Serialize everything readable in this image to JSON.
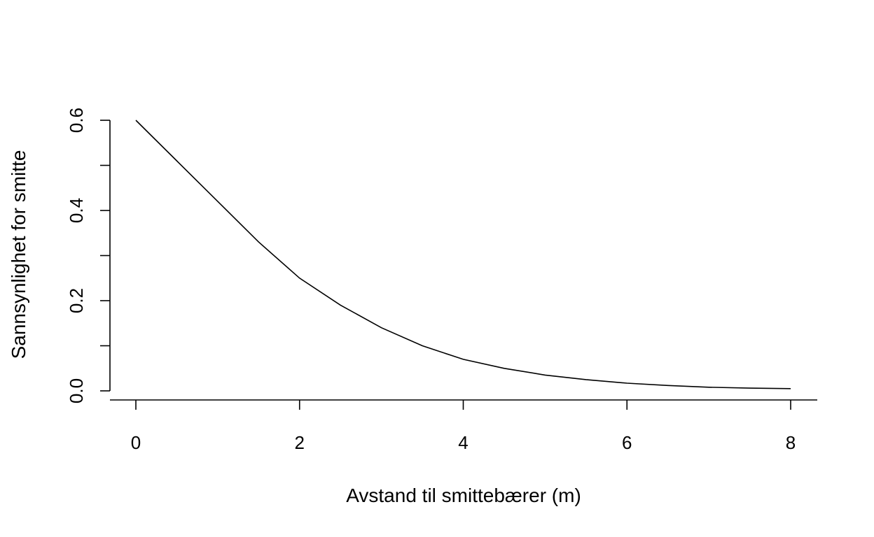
{
  "chart_data": {
    "type": "line",
    "title": "",
    "xlabel": "Avstand til smittebærer (m)",
    "ylabel": "Sannsynlighet for smitte",
    "xlim": [
      0,
      8
    ],
    "ylim": [
      0,
      0.6
    ],
    "x_ticks": [
      0,
      2,
      4,
      6,
      8
    ],
    "x_tick_labels": [
      "0",
      "2",
      "4",
      "6",
      "8"
    ],
    "y_ticks": [
      0,
      0.1,
      0.2,
      0.3,
      0.4,
      0.5,
      0.6
    ],
    "y_tick_labels": [
      "0.0",
      "",
      "0.2",
      "",
      "0.4",
      "",
      "0.6"
    ],
    "grid": false,
    "legend": "none",
    "series": [
      {
        "color": "#000000",
        "x": [
          0,
          0.5,
          1,
          1.5,
          2,
          2.5,
          3,
          3.5,
          4,
          4.5,
          5,
          5.5,
          6,
          6.5,
          7,
          7.5,
          8
        ],
        "y": [
          0.6,
          0.51,
          0.42,
          0.33,
          0.25,
          0.19,
          0.14,
          0.1,
          0.07,
          0.05,
          0.035,
          0.025,
          0.017,
          0.012,
          0.008,
          0.006,
          0.005
        ]
      }
    ]
  }
}
